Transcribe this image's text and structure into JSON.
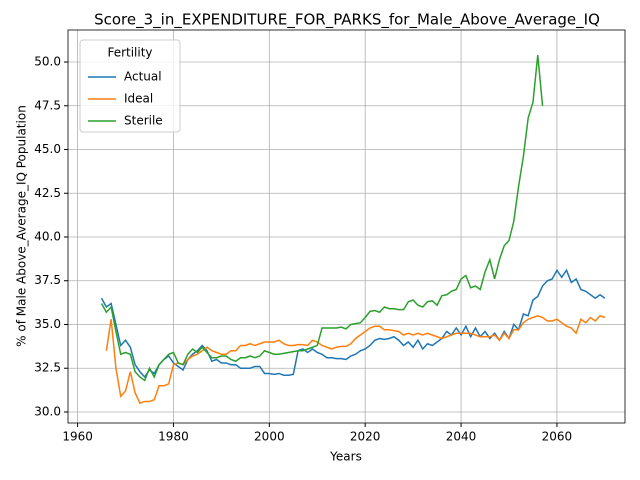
{
  "chart_data": {
    "type": "line",
    "title": "Score_3_in_EXPENDITURE_FOR_PARKS_for_Male_Above_Average_IQ",
    "xlabel": "Years",
    "ylabel": "% of Male Above_Average_IQ Population",
    "legend_title": "Fertility",
    "legend_position": "upper left",
    "grid": true,
    "x": [
      1965,
      1966,
      1967,
      1968,
      1969,
      1970,
      1971,
      1972,
      1973,
      1974,
      1975,
      1976,
      1977,
      1978,
      1979,
      1980,
      1981,
      1982,
      1983,
      1984,
      1985,
      1986,
      1987,
      1988,
      1989,
      1990,
      1991,
      1992,
      1993,
      1994,
      1995,
      1996,
      1997,
      1998,
      1999,
      2000,
      2001,
      2002,
      2003,
      2004,
      2005,
      2006,
      2007,
      2008,
      2009,
      2010,
      2011,
      2012,
      2013,
      2014,
      2015,
      2016,
      2017,
      2018,
      2019,
      2020,
      2021,
      2022,
      2023,
      2024,
      2025,
      2026,
      2027,
      2028,
      2029,
      2030,
      2031,
      2032,
      2033,
      2034,
      2035,
      2036,
      2037,
      2038,
      2039,
      2040,
      2041,
      2042,
      2043,
      2044,
      2045,
      2046,
      2047,
      2048,
      2049,
      2050,
      2051,
      2052,
      2053,
      2054,
      2055,
      2056,
      2057,
      2058,
      2059,
      2060,
      2061,
      2062,
      2063,
      2064,
      2065,
      2066,
      2067,
      2068,
      2069,
      2070
    ],
    "series": [
      {
        "name": "Actual",
        "color": "#1f77b4",
        "values": [
          36.5,
          36.0,
          36.2,
          35.0,
          33.8,
          34.1,
          33.7,
          32.7,
          32.3,
          32.0,
          32.4,
          32.2,
          32.7,
          33.0,
          33.2,
          32.8,
          32.6,
          32.4,
          33.0,
          33.3,
          33.5,
          33.8,
          33.5,
          32.9,
          33.0,
          32.8,
          32.8,
          32.7,
          32.7,
          32.5,
          32.5,
          32.5,
          32.6,
          32.6,
          32.2,
          32.2,
          32.15,
          32.2,
          32.1,
          32.1,
          32.15,
          33.5,
          33.6,
          33.4,
          33.6,
          33.4,
          33.3,
          33.1,
          33.1,
          33.05,
          33.05,
          33.0,
          33.2,
          33.3,
          33.5,
          33.6,
          33.8,
          34.1,
          34.2,
          34.15,
          34.2,
          34.3,
          34.1,
          33.8,
          34.0,
          33.7,
          34.1,
          33.6,
          33.9,
          33.8,
          34.0,
          34.2,
          34.6,
          34.4,
          34.8,
          34.4,
          34.9,
          34.3,
          34.8,
          34.3,
          34.6,
          34.2,
          34.5,
          34.1,
          34.6,
          34.2,
          35.0,
          34.7,
          35.6,
          35.5,
          36.4,
          36.6,
          37.2,
          37.5,
          37.6,
          38.1,
          37.7,
          38.1,
          37.4,
          37.6,
          37.0,
          36.9,
          36.7,
          36.5,
          36.7,
          36.5
        ]
      },
      {
        "name": "Ideal",
        "color": "#ff7f0e",
        "values": [
          null,
          33.5,
          35.3,
          32.5,
          30.9,
          31.2,
          32.3,
          31.1,
          30.5,
          30.6,
          30.6,
          30.7,
          31.5,
          31.5,
          31.6,
          32.7,
          32.8,
          32.7,
          33.0,
          33.2,
          33.3,
          33.5,
          33.7,
          33.5,
          33.4,
          33.3,
          33.3,
          33.5,
          33.5,
          33.8,
          33.8,
          33.9,
          33.8,
          33.9,
          34.0,
          34.0,
          34.0,
          34.1,
          33.9,
          33.8,
          33.8,
          33.85,
          33.85,
          33.8,
          34.1,
          34.0,
          33.8,
          33.7,
          33.6,
          33.7,
          33.75,
          33.75,
          33.9,
          34.2,
          34.4,
          34.6,
          34.8,
          34.9,
          34.9,
          34.7,
          34.7,
          34.65,
          34.6,
          34.4,
          34.5,
          34.4,
          34.5,
          34.4,
          34.5,
          34.4,
          34.3,
          34.2,
          34.3,
          34.4,
          34.5,
          34.5,
          34.5,
          34.5,
          34.4,
          34.3,
          34.3,
          34.3,
          34.4,
          34.1,
          34.5,
          34.2,
          34.7,
          34.7,
          35.1,
          35.3,
          35.4,
          35.5,
          35.4,
          35.2,
          35.2,
          35.3,
          35.1,
          34.9,
          34.8,
          34.5,
          35.3,
          35.1,
          35.4,
          35.2,
          35.5,
          35.4
        ]
      },
      {
        "name": "Sterile",
        "color": "#2ca02c",
        "values": [
          36.2,
          35.7,
          36.0,
          34.6,
          33.3,
          33.4,
          33.3,
          32.3,
          32.0,
          31.8,
          32.5,
          32.0,
          32.7,
          33.0,
          33.3,
          33.4,
          32.8,
          32.7,
          33.3,
          33.6,
          33.4,
          33.7,
          33.4,
          33.1,
          33.1,
          33.2,
          33.2,
          33.0,
          32.9,
          33.1,
          33.1,
          33.2,
          33.1,
          33.2,
          33.5,
          33.4,
          33.3,
          33.3,
          33.35,
          33.4,
          33.45,
          33.5,
          33.5,
          33.6,
          33.7,
          33.8,
          34.8,
          34.8,
          34.8,
          34.8,
          34.85,
          34.75,
          35.0,
          35.05,
          35.1,
          35.4,
          35.75,
          35.8,
          35.7,
          36.0,
          35.9,
          35.9,
          35.85,
          35.85,
          36.3,
          36.4,
          36.1,
          36.0,
          36.3,
          36.35,
          36.1,
          36.65,
          36.7,
          36.9,
          37.0,
          37.6,
          37.8,
          37.1,
          37.2,
          37.0,
          38.0,
          38.7,
          37.6,
          38.7,
          39.5,
          39.8,
          40.9,
          42.9,
          44.6,
          46.8,
          47.7,
          50.4,
          47.5,
          null,
          null,
          null,
          null,
          null,
          null,
          null,
          null,
          null,
          null,
          null,
          null,
          null
        ]
      }
    ],
    "xlim": [
      1958,
      2074.2
    ],
    "xticks": [
      1960,
      1980,
      2000,
      2020,
      2040,
      2060
    ],
    "ylim": [
      29.37,
      51.83
    ],
    "yticks": [
      {
        "value": 30,
        "label": "30.0"
      },
      32.5,
      {
        "value": 35,
        "label": "35.0"
      },
      37.5,
      {
        "value": 40,
        "label": "40.0"
      },
      42.5,
      {
        "value": 45,
        "label": "45.0"
      },
      47.5,
      {
        "value": 50,
        "label": "50.0"
      }
    ]
  }
}
